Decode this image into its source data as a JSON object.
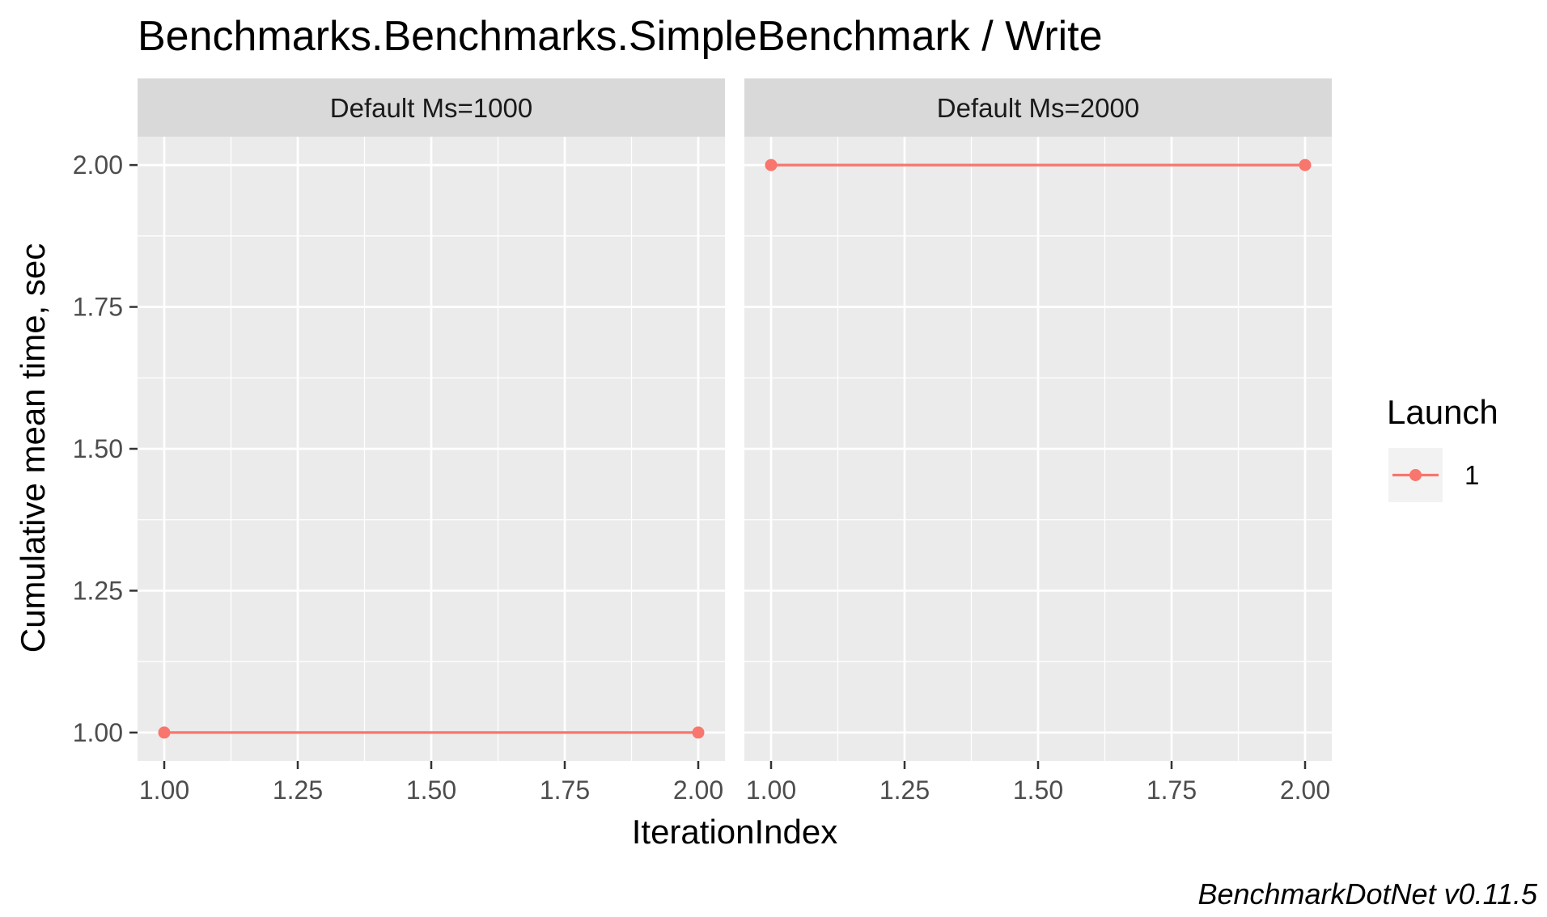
{
  "chart_data": {
    "type": "line",
    "title": "Benchmarks.Benchmarks.SimpleBenchmark / Write",
    "xlabel": "IterationIndex",
    "ylabel": "Cumulative mean time, sec",
    "caption": "BenchmarkDotNet v0.11.5",
    "xlim": [
      0.95,
      2.05
    ],
    "ylim": [
      0.95,
      2.05
    ],
    "x_ticks": [
      1.0,
      1.25,
      1.5,
      1.75,
      2.0
    ],
    "x_tick_labels": [
      "1.00",
      "1.25",
      "1.50",
      "1.75",
      "2.00"
    ],
    "y_ticks": [
      1.0,
      1.25,
      1.5,
      1.75,
      2.0
    ],
    "y_tick_labels": [
      "1.00",
      "1.25",
      "1.50",
      "1.75",
      "2.00"
    ],
    "grid": true,
    "legend": {
      "title": "Launch",
      "position": "right",
      "entries": [
        {
          "label": "1",
          "color": "#F8766D"
        }
      ]
    },
    "panels": [
      {
        "strip": "Default Ms=1000",
        "series": [
          {
            "name": "1",
            "color": "#F8766D",
            "x": [
              1,
              2
            ],
            "y": [
              1.0,
              1.0
            ]
          }
        ]
      },
      {
        "strip": "Default Ms=2000",
        "series": [
          {
            "name": "1",
            "color": "#F8766D",
            "x": [
              1,
              2
            ],
            "y": [
              2.0,
              2.0
            ]
          }
        ]
      }
    ]
  },
  "colors": {
    "panel_background": "#EBEBEB",
    "strip_background": "#D9D9D9",
    "grid_major": "#FFFFFF",
    "series": "#F8766D"
  }
}
